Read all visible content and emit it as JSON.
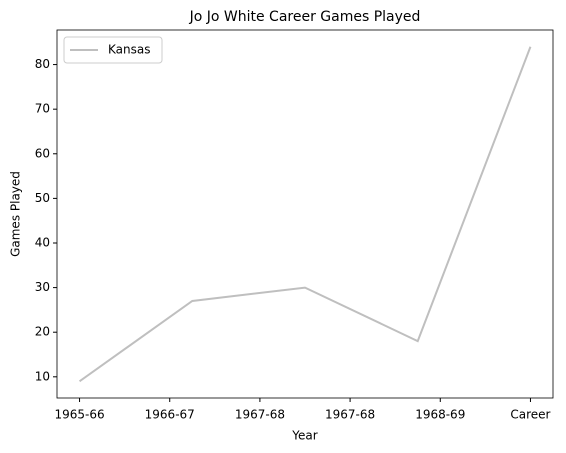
{
  "chart_data": {
    "type": "line",
    "title": "Jo Jo White Career Games Played",
    "xlabel": "Year",
    "ylabel": "Games Played",
    "x": [
      0,
      1,
      2,
      3,
      4
    ],
    "series": [
      {
        "name": "Kansas",
        "color": "#bfbfbf",
        "values": [
          9,
          27,
          30,
          18,
          84
        ]
      }
    ],
    "xlim": [
      -0.2,
      4.2
    ],
    "xticks": [
      {
        "value": 0,
        "label": "1965-66"
      },
      {
        "value": 0.8,
        "label": "1966-67"
      },
      {
        "value": 1.6,
        "label": "1967-68"
      },
      {
        "value": 2.4,
        "label": "1967-68"
      },
      {
        "value": 3.2,
        "label": "1968-69"
      },
      {
        "value": 4,
        "label": "Career"
      }
    ],
    "ylim": [
      5.25,
      87.75
    ],
    "yticks": [
      10,
      20,
      30,
      40,
      50,
      60,
      70,
      80
    ],
    "legend": "upper left",
    "grid": false
  }
}
